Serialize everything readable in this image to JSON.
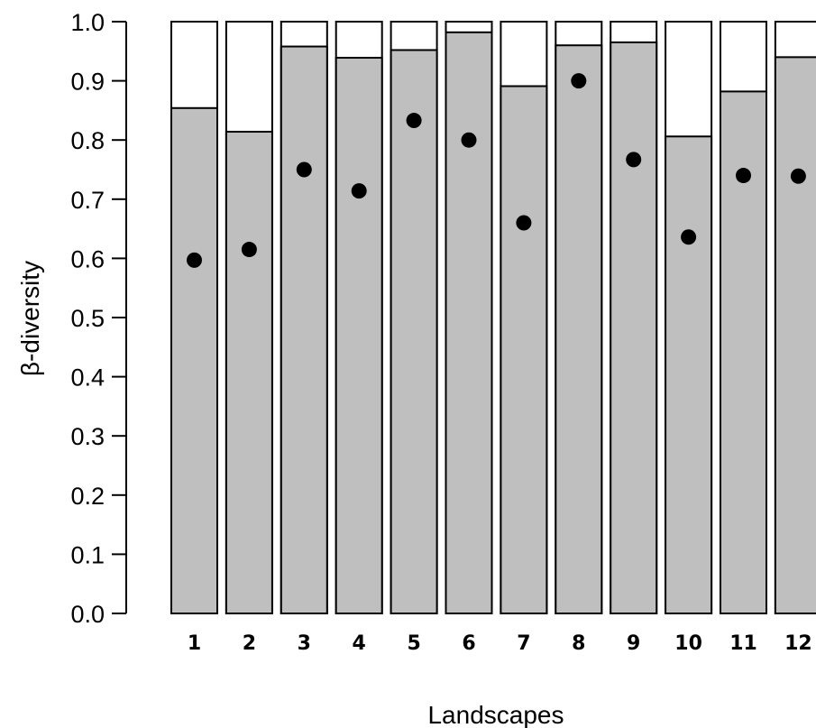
{
  "chart_data": {
    "type": "bar",
    "categories": [
      "1",
      "2",
      "3",
      "4",
      "5",
      "6",
      "7",
      "8",
      "9",
      "10",
      "11",
      "12"
    ],
    "series": [
      {
        "values": [
          0.854,
          0.814,
          0.958,
          0.939,
          0.952,
          0.982,
          0.891,
          0.96,
          0.965,
          0.806,
          0.882,
          0.94
        ]
      },
      {
        "values": [
          0.597,
          0.615,
          0.75,
          0.714,
          0.833,
          0.8,
          0.66,
          0.9,
          0.767,
          0.636,
          0.74,
          0.739
        ]
      }
    ],
    "bar_total": 1.0,
    "xlabel": "Landscapes",
    "ylabel": "β-diversity",
    "ylim": [
      0.0,
      1.0
    ],
    "yticks": [
      "0.0",
      "0.1",
      "0.2",
      "0.3",
      "0.4",
      "0.5",
      "0.6",
      "0.7",
      "0.8",
      "0.9",
      "1.0"
    ],
    "grid": false,
    "legend": "none",
    "colors": {
      "bar_fill": "#bfbfbf",
      "bar_remainder": "#ffffff",
      "outline": "#000000",
      "point": "#000000"
    }
  }
}
